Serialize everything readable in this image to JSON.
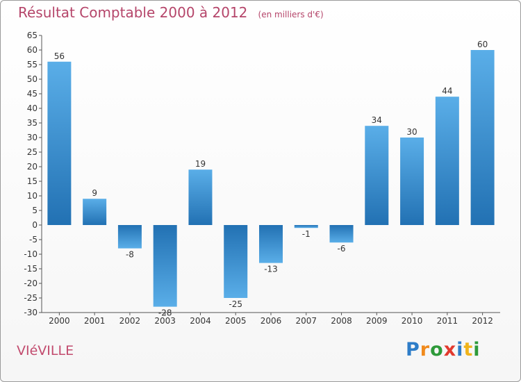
{
  "title": "Résultat Comptable 2000 à 2012",
  "unit_label": "(en milliers d'€)",
  "commune": "VIéVILLE",
  "logo": {
    "text": "Proxiti",
    "letters": [
      "P",
      "r",
      "o",
      "x",
      "i",
      "t",
      "i"
    ],
    "colors": [
      "#2e7dc8",
      "#f08a1c",
      "#2e9a3a",
      "#e23a2e",
      "#2e7dc8",
      "#f0b41c",
      "#2e9a3a"
    ]
  },
  "colors": {
    "bar_light": "#5aaee8",
    "bar_dark": "#2271b3",
    "title": "#b5456a"
  },
  "chart_data": {
    "type": "bar",
    "title": "Résultat Comptable 2000 à 2012",
    "subtitle": "(en milliers d'€)",
    "xlabel": "",
    "ylabel": "",
    "categories": [
      "2000",
      "2001",
      "2002",
      "2003",
      "2004",
      "2005",
      "2006",
      "2007",
      "2008",
      "2009",
      "2010",
      "2011",
      "2012"
    ],
    "values": [
      56,
      9,
      -8,
      -28,
      19,
      -25,
      -13,
      -1,
      -6,
      34,
      30,
      44,
      60
    ],
    "labels": [
      "56",
      "9",
      "-8",
      "-28",
      "19",
      "-25",
      "-13",
      "-1",
      "-6",
      "34",
      "30",
      "44",
      "60"
    ],
    "ylim": [
      -30,
      65
    ],
    "yticks": [
      65,
      60,
      55,
      50,
      45,
      40,
      35,
      30,
      25,
      20,
      15,
      10,
      5,
      0,
      -5,
      -10,
      -15,
      -20,
      -25,
      -30
    ],
    "grid": false,
    "legend": "none"
  }
}
